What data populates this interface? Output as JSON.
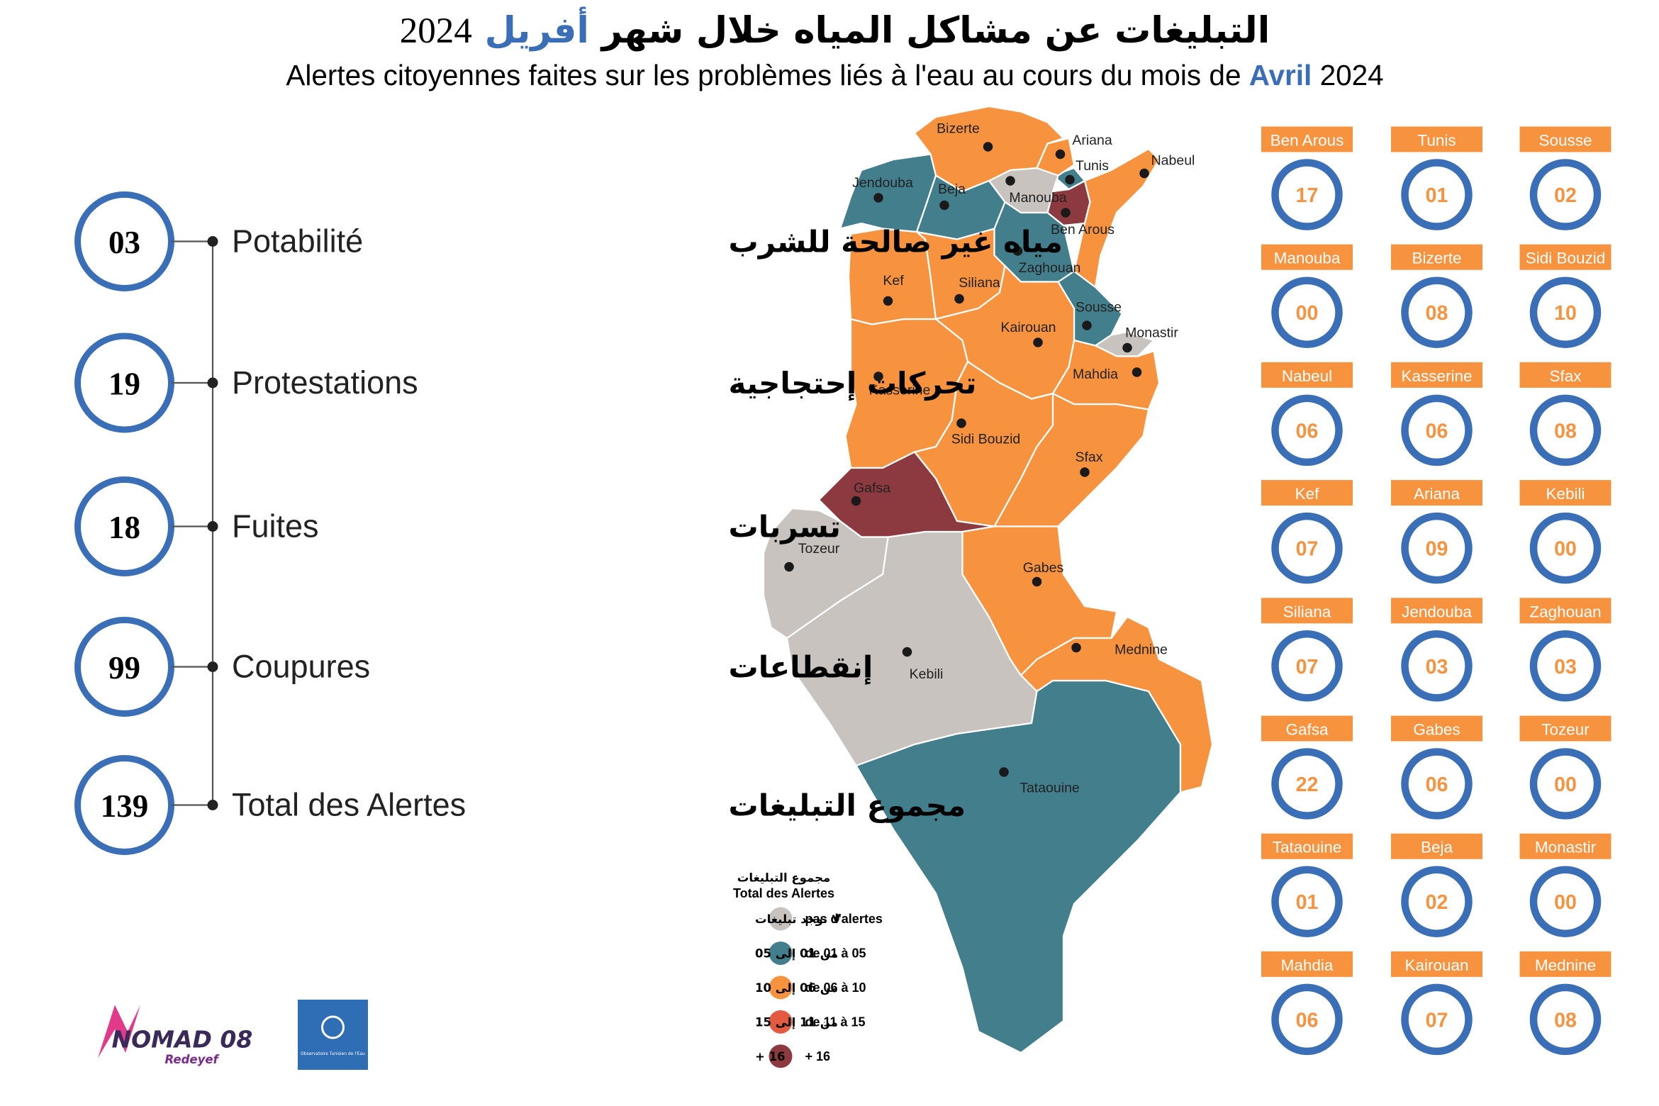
{
  "header": {
    "title_ar": {
      "text": "التبليغات عن مشاكل المياه خلال شهر",
      "month": "أفريل",
      "year": "2024"
    },
    "title_fr": {
      "text": "Alertes citoyennes faites sur les problèmes liés à l'eau au cours du mois de",
      "month": "Avril",
      "year": "2024"
    }
  },
  "summary": [
    {
      "value": "03",
      "label_fr": "Potabilité",
      "label_ar": "مياه غير صالحة للشرب"
    },
    {
      "value": "19",
      "label_fr": "Protestations",
      "label_ar": "تحركات إحتجاجية"
    },
    {
      "value": "18",
      "label_fr": "Fuites",
      "label_ar": "تسربات"
    },
    {
      "value": "99",
      "label_fr": "Coupures",
      "label_ar": "إنقطاعات"
    },
    {
      "value": "139",
      "label_fr": "Total des Alertes",
      "label_ar": "مجموع التبليغات"
    }
  ],
  "governorates": [
    {
      "name": "Ben Arous",
      "count": "17"
    },
    {
      "name": "Tunis",
      "count": "01"
    },
    {
      "name": "Sousse",
      "count": "02"
    },
    {
      "name": "Manouba",
      "count": "00"
    },
    {
      "name": "Bizerte",
      "count": "08"
    },
    {
      "name": "Sidi Bouzid",
      "count": "10"
    },
    {
      "name": "Nabeul",
      "count": "06"
    },
    {
      "name": "Kasserine",
      "count": "06"
    },
    {
      "name": "Sfax",
      "count": "08"
    },
    {
      "name": "Kef",
      "count": "07"
    },
    {
      "name": "Ariana",
      "count": "09"
    },
    {
      "name": "Kebili",
      "count": "00"
    },
    {
      "name": "Siliana",
      "count": "07"
    },
    {
      "name": "Jendouba",
      "count": "03"
    },
    {
      "name": "Zaghouan",
      "count": "03"
    },
    {
      "name": "Gafsa",
      "count": "22"
    },
    {
      "name": "Gabes",
      "count": "06"
    },
    {
      "name": "Tozeur",
      "count": "00"
    },
    {
      "name": "Tataouine",
      "count": "01"
    },
    {
      "name": "Beja",
      "count": "02"
    },
    {
      "name": "Monastir",
      "count": "00"
    },
    {
      "name": "Mahdia",
      "count": "06"
    },
    {
      "name": "Kairouan",
      "count": "07"
    },
    {
      "name": "Mednine",
      "count": "08"
    }
  ],
  "legend": {
    "title_ar": "مجموع التبليغات",
    "title_fr": "Total des Alertes",
    "items": [
      {
        "label_fr": "pas d'alertes",
        "label_ar": "لا توجد تبليغات",
        "color": "#c8c3bf"
      },
      {
        "label_fr": "de 01 à 05",
        "label_ar": "من 01 إلى 05",
        "color": "#437e8d"
      },
      {
        "label_fr": "de 06 à 10",
        "label_ar": "من 06 إلى 10",
        "color": "#f7923f"
      },
      {
        "label_fr": "de 11 à 15",
        "label_ar": "من 11 إلى 15",
        "color": "#e25b41"
      },
      {
        "label_fr": "+ 16",
        "label_ar": "16 +",
        "color": "#8c3a3f"
      }
    ]
  },
  "logos": {
    "nomad": "NOMAD 08",
    "nomad_sub": "Redeyef",
    "observatoire": "Observatoire Tunisien de l'Eau"
  }
}
